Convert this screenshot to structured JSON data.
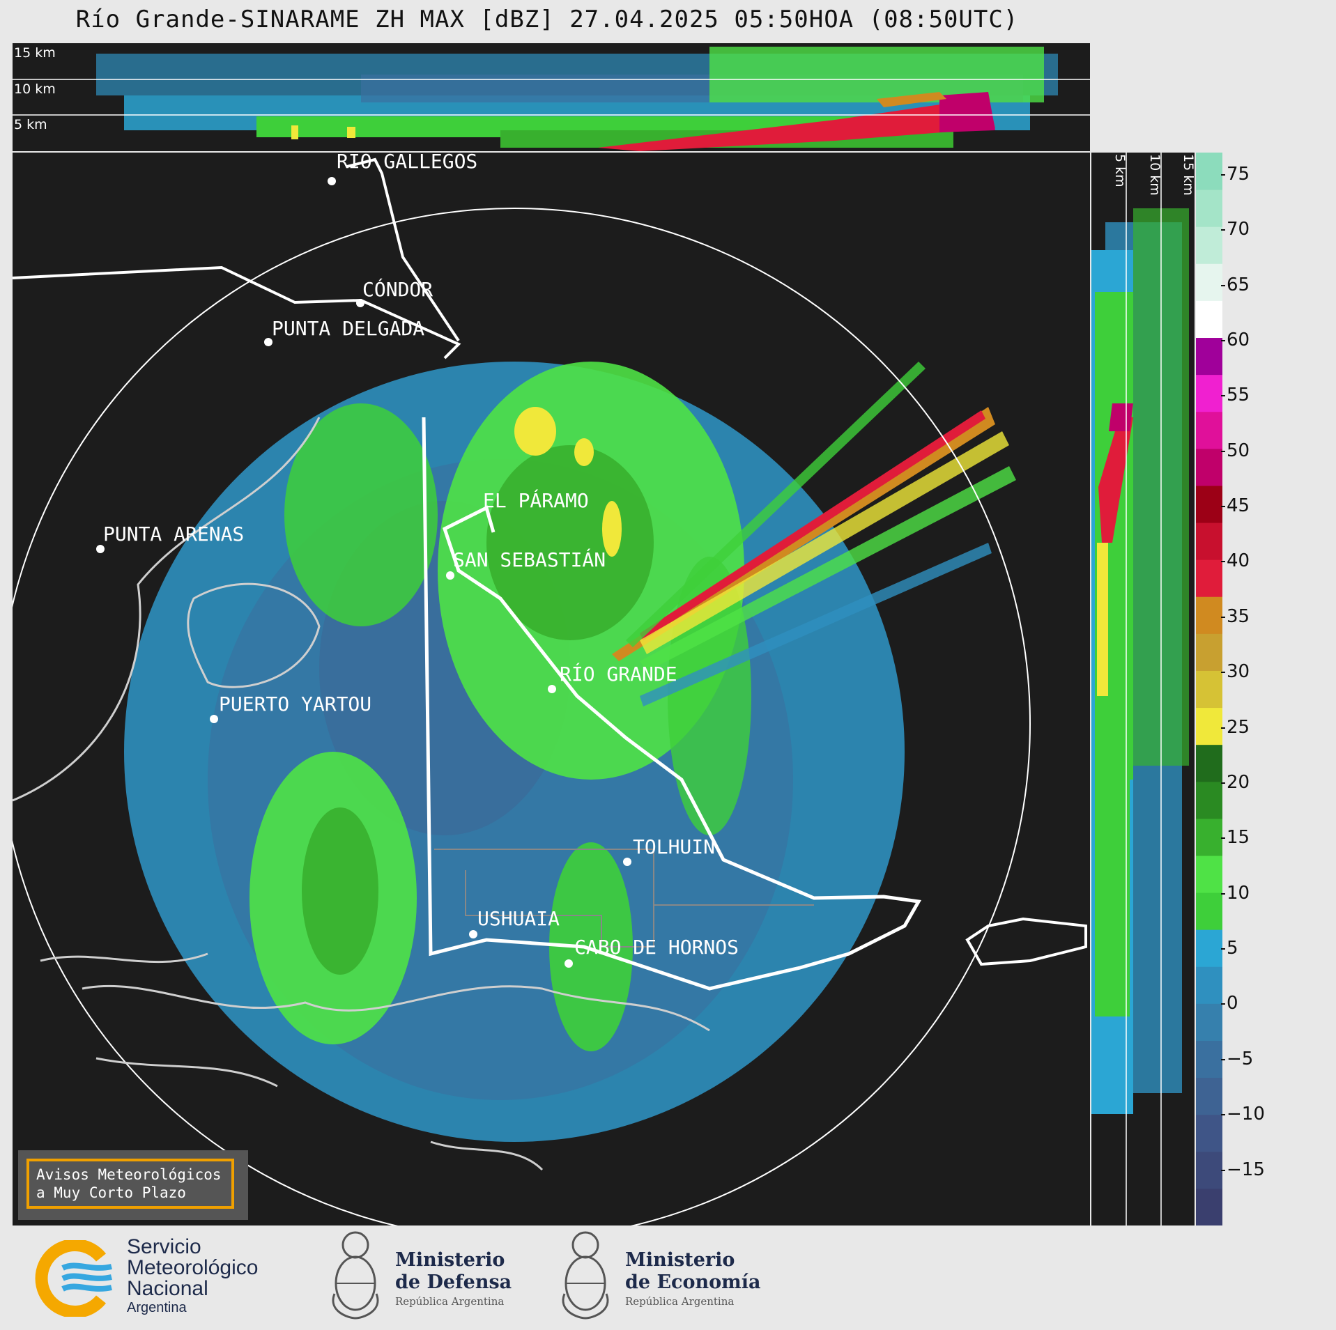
{
  "title": "Río Grande-SINARAME ZH MAX [dBZ] 27.04.2025 05:50HOA (08:50UTC)",
  "top_panel": {
    "height_labels": [
      "15 km",
      "10 km",
      "5 km"
    ]
  },
  "side_panel": {
    "height_labels": [
      "5 km",
      "10 km",
      "15 km"
    ]
  },
  "map": {
    "cities": [
      {
        "name": "RÍO GALLEGOS"
      },
      {
        "name": "CÓNDOR"
      },
      {
        "name": "PUNTA DELGADA"
      },
      {
        "name": "EL PÁRAMO"
      },
      {
        "name": "PUNTA ARENAS"
      },
      {
        "name": "SAN SEBASTIÁN"
      },
      {
        "name": "RÍO GRANDE"
      },
      {
        "name": "PUERTO YARTOU"
      },
      {
        "name": "TOLHUIN"
      },
      {
        "name": "USHUAIA"
      },
      {
        "name": "CABO DE HORNOS"
      }
    ]
  },
  "colorbar": {
    "unit": "dBZ",
    "ticks": [
      "75",
      "70",
      "65",
      "60",
      "55",
      "50",
      "45",
      "40",
      "35",
      "30",
      "25",
      "20",
      "15",
      "10",
      "5",
      "0",
      "−5",
      "−10",
      "−15"
    ],
    "range": [
      -20,
      77
    ],
    "colors": [
      "#3a3f6e",
      "#3d4a7a",
      "#3f5587",
      "#3e6393",
      "#3a709f",
      "#3680ad",
      "#2f90bf",
      "#2ba6d4",
      "#3ecf3a",
      "#4fe246",
      "#38b02e",
      "#2a8a22",
      "#206c1c",
      "#f0e83a",
      "#d6c235",
      "#c8a030",
      "#d08a20",
      "#e01c3a",
      "#c8102e",
      "#9c0016",
      "#c0006a",
      "#e0109a",
      "#f020d0",
      "#a0009a",
      "#ffffff",
      "#e6f5ee",
      "#c0ecd8",
      "#a4e4c8",
      "#8cdcbc"
    ]
  },
  "warning_box": {
    "line1": "Avisos Meteorológicos",
    "line2": "a Muy Corto Plazo"
  },
  "logos": {
    "smn": {
      "line1": "Servicio",
      "line2": "Meteorológico",
      "line3": "Nacional",
      "line4": "Argentina"
    },
    "defensa": {
      "line1": "Ministerio",
      "line2": "de Defensa",
      "line3": "República Argentina"
    },
    "economia": {
      "line1": "Ministerio",
      "line2": "de Economía",
      "line3": "República Argentina"
    }
  }
}
